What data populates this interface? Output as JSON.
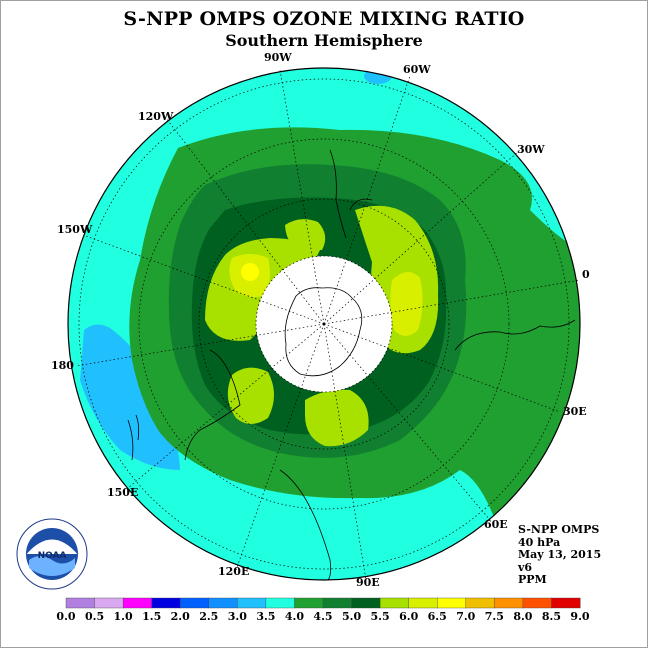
{
  "title": "S-NPP OMPS OZONE MIXING RATIO",
  "subtitle": "Southern Hemisphere",
  "longitude_labels": {
    "w90": "90W",
    "w60": "60W",
    "w30": "30W",
    "e0": "0",
    "e30": "30E",
    "e60": "60E",
    "e90": "90E",
    "e120": "120E",
    "e150": "150E",
    "e180": "180",
    "w150": "150W",
    "w120": "120W"
  },
  "info": {
    "instrument": "S-NPP OMPS",
    "level": "40 hPa",
    "date": "May 13, 2015",
    "version": "v6",
    "units": "PPM"
  },
  "logo": {
    "text": "NOAA"
  },
  "colorbar": {
    "ticks": [
      "0.0",
      "0.5",
      "1.0",
      "1.5",
      "2.0",
      "2.5",
      "3.0",
      "3.5",
      "4.0",
      "4.5",
      "5.0",
      "5.5",
      "6.0",
      "6.5",
      "7.0",
      "7.5",
      "8.0",
      "8.5",
      "9.0"
    ],
    "colors": [
      "#b07fe0",
      "#d8a8f0",
      "#ff00ff",
      "#0000e0",
      "#0060ff",
      "#1090ff",
      "#20c0ff",
      "#20ffe0",
      "#20a030",
      "#108030",
      "#006020",
      "#a8e000",
      "#d8f000",
      "#ffff00",
      "#f0c000",
      "#ff9000",
      "#ff5000",
      "#e00000",
      "#804020"
    ]
  },
  "contour_colors": {
    "level_3_0": "#20c0ff",
    "level_3_5": "#20ffe0",
    "level_4_0": "#20a030",
    "level_4_5": "#108030",
    "level_5_0": "#006020",
    "level_5_5": "#a8e000",
    "level_6_0": "#d8f000",
    "level_6_5": "#ffff00"
  }
}
